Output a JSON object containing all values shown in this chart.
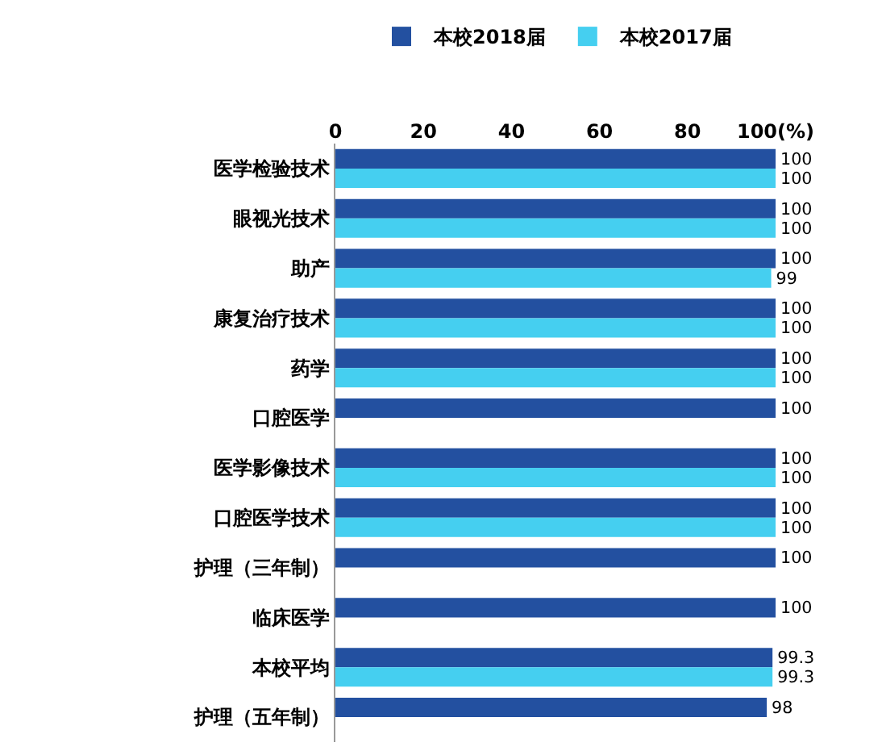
{
  "chart_data": {
    "type": "bar",
    "orientation": "horizontal",
    "categories": [
      "医学检验技术",
      "眼视光技术",
      "助产",
      "康复治疗技术",
      "药学",
      "口腔医学",
      "医学影像技术",
      "口腔医学技术",
      "护理（三年制）",
      "临床医学",
      "本校平均",
      "护理（五年制）"
    ],
    "series": [
      {
        "name": "本校2018届",
        "color": "#2350a0",
        "values": [
          100,
          100,
          100,
          100,
          100,
          100,
          100,
          100,
          100,
          100,
          99.3,
          98
        ]
      },
      {
        "name": "本校2017届",
        "color": "#45cff0",
        "values": [
          100,
          100,
          99,
          100,
          100,
          null,
          100,
          100,
          null,
          null,
          99.3,
          null
        ]
      }
    ],
    "xlim": [
      0,
      100
    ],
    "xticks": [
      0,
      20,
      40,
      60,
      80,
      {
        "value": 100,
        "label": "100(%)"
      }
    ],
    "data_labels": true,
    "legend": "top",
    "grid": false
  }
}
